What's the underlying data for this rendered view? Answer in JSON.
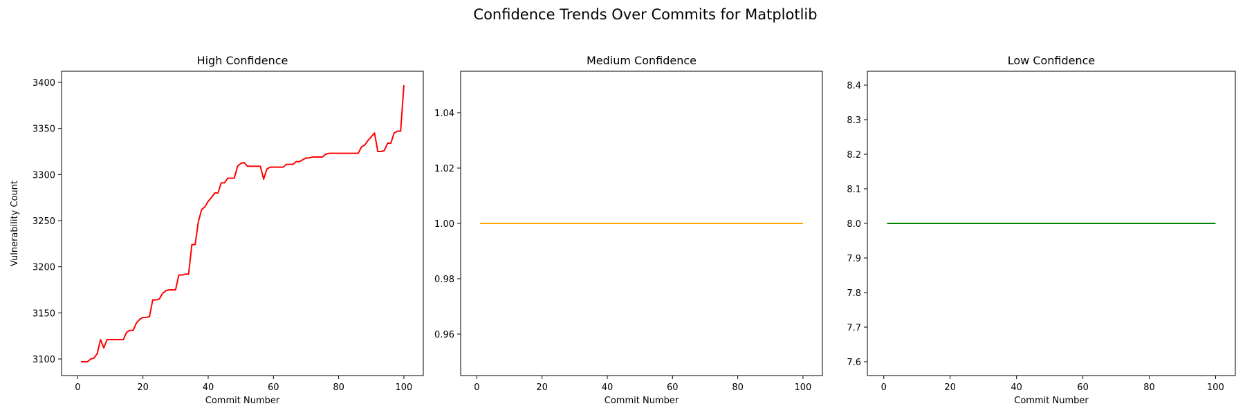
{
  "chart_data": {
    "title": "Confidence Trends Over Commits for Matplotlib",
    "subplots": [
      {
        "type": "line",
        "title": "High Confidence",
        "xlabel": "Commit Number",
        "ylabel": "Vulnerability Count",
        "color": "#ff0000",
        "xlim": [
          -4.95,
          105.95
        ],
        "ylim": [
          3082,
          3412
        ],
        "xticks": [
          0,
          20,
          40,
          60,
          80,
          100
        ],
        "yticks": [
          3100,
          3150,
          3200,
          3250,
          3300,
          3350,
          3400
        ],
        "ytick_labels": [
          "3100",
          "3150",
          "3200",
          "3250",
          "3300",
          "3350",
          "3400"
        ],
        "x": [
          1,
          2,
          3,
          4,
          5,
          6,
          7,
          8,
          9,
          10,
          11,
          12,
          13,
          14,
          15,
          16,
          17,
          18,
          19,
          20,
          21,
          22,
          23,
          24,
          25,
          26,
          27,
          28,
          29,
          30,
          31,
          32,
          33,
          34,
          35,
          36,
          37,
          38,
          39,
          40,
          41,
          42,
          43,
          44,
          45,
          46,
          47,
          48,
          49,
          50,
          51,
          52,
          53,
          54,
          55,
          56,
          57,
          58,
          59,
          60,
          61,
          62,
          63,
          64,
          65,
          66,
          67,
          68,
          69,
          70,
          71,
          72,
          73,
          74,
          75,
          76,
          77,
          78,
          79,
          80,
          81,
          82,
          83,
          84,
          85,
          86,
          87,
          88,
          89,
          90,
          91,
          92,
          93,
          94,
          95,
          96,
          97,
          98,
          99,
          100
        ],
        "y": [
          3097,
          3097,
          3097,
          3100,
          3101,
          3106,
          3121,
          3112,
          3121,
          3121,
          3121,
          3121,
          3121,
          3121,
          3129,
          3131,
          3131,
          3139,
          3143,
          3145,
          3145,
          3146,
          3164,
          3164,
          3165,
          3171,
          3174,
          3175,
          3175,
          3175,
          3191,
          3191,
          3192,
          3192,
          3224,
          3224,
          3249,
          3262,
          3265,
          3271,
          3275,
          3280,
          3280,
          3291,
          3291,
          3296,
          3296,
          3296,
          3309,
          3312,
          3313,
          3309,
          3309,
          3309,
          3309,
          3309,
          3295,
          3306,
          3308,
          3308,
          3308,
          3308,
          3308,
          3311,
          3311,
          3311,
          3314,
          3314,
          3316,
          3318,
          3318,
          3319,
          3319,
          3319,
          3319,
          3322,
          3323,
          3323,
          3323,
          3323,
          3323,
          3323,
          3323,
          3323,
          3323,
          3323,
          3330,
          3332,
          3337,
          3341,
          3345,
          3325,
          3325,
          3326,
          3334,
          3334,
          3345,
          3347,
          3347,
          3397
        ]
      },
      {
        "type": "line",
        "title": "Medium Confidence",
        "xlabel": "Commit Number",
        "ylabel": "",
        "color": "#ffa500",
        "xlim": [
          -4.95,
          105.95
        ],
        "ylim": [
          0.945,
          1.055
        ],
        "xticks": [
          0,
          20,
          40,
          60,
          80,
          100
        ],
        "yticks": [
          0.96,
          0.98,
          1.0,
          1.02,
          1.04
        ],
        "ytick_labels": [
          "0.96",
          "0.98",
          "1.00",
          "1.02",
          "1.04"
        ],
        "x": [
          1,
          100
        ],
        "y": [
          1,
          1
        ]
      },
      {
        "type": "line",
        "title": "Low Confidence",
        "xlabel": "Commit Number",
        "ylabel": "",
        "color": "#008000",
        "xlim": [
          -4.95,
          105.95
        ],
        "ylim": [
          7.56,
          8.44
        ],
        "xticks": [
          0,
          20,
          40,
          60,
          80,
          100
        ],
        "yticks": [
          7.6,
          7.7,
          7.8,
          7.9,
          8.0,
          8.1,
          8.2,
          8.3,
          8.4
        ],
        "ytick_labels": [
          "7.6",
          "7.7",
          "7.8",
          "7.9",
          "8.0",
          "8.1",
          "8.2",
          "8.3",
          "8.4"
        ],
        "x": [
          1,
          100
        ],
        "y": [
          8,
          8
        ]
      }
    ]
  }
}
